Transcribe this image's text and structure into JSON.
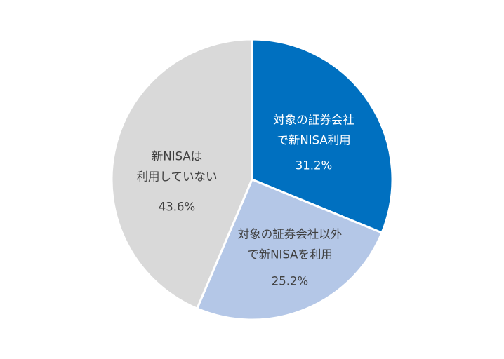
{
  "chart_data": {
    "type": "pie",
    "start_angle_deg": 0,
    "direction": "clockwise",
    "slices": [
      {
        "label_lines": [
          "対象の証券会社",
          "で新NISA利用"
        ],
        "value": 31.2,
        "value_label": "31.2%",
        "color": "#0070c0",
        "text_color": "#ffffff"
      },
      {
        "label_lines": [
          "対象の証券会社以外",
          "で新NISAを利用"
        ],
        "value": 25.2,
        "value_label": "25.2%",
        "color": "#b4c7e7",
        "text_color": "#404040"
      },
      {
        "label_lines": [
          "新NISAは",
          "利用していない"
        ],
        "value": 43.6,
        "value_label": "43.6%",
        "color": "#d9d9d9",
        "text_color": "#404040"
      }
    ]
  }
}
